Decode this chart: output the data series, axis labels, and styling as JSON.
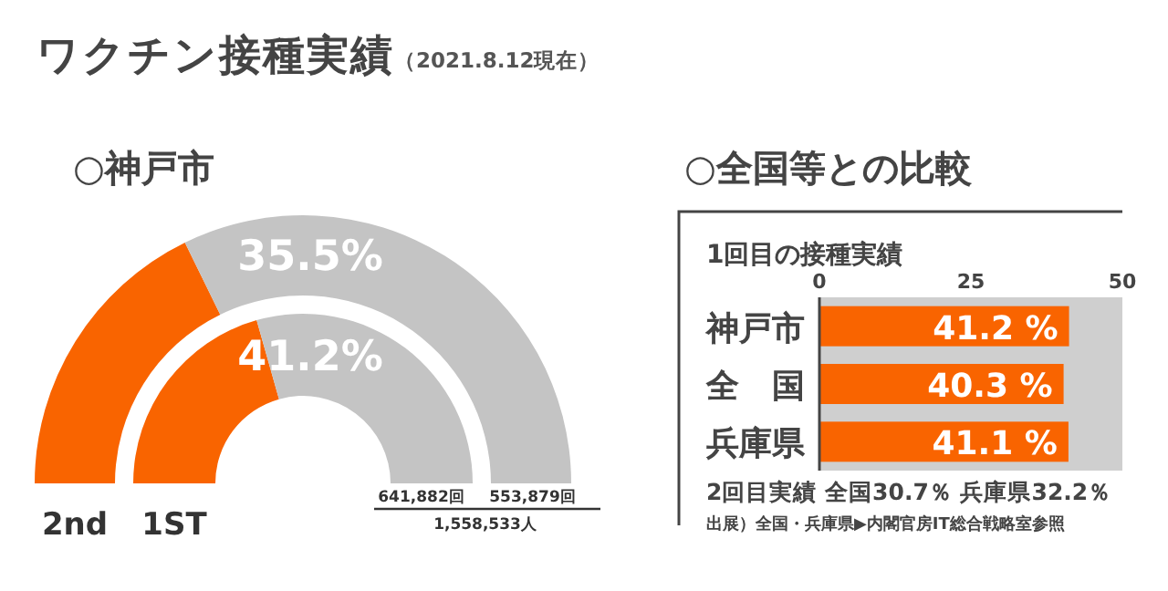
{
  "chart_data": [
    {
      "type": "other",
      "title": "ワクチン接種実績",
      "subtitle": "（2021.8.12現在）"
    },
    {
      "type": "donut",
      "title": "○神戸市",
      "categories": [
        null,
        null
      ],
      "series": [
        {
          "name": "2nd",
          "values": [
            35.5,
            64.5
          ],
          "colors": [
            "#f96400",
            "#c4c4c4"
          ]
        },
        {
          "name": "1ST",
          "values": [
            41.2,
            58.8
          ],
          "colors": [
            "#f96400",
            "#c4c4c4"
          ]
        }
      ],
      "annotations": [
        "35.5%",
        "41.2%",
        "641,882回",
        "553,879回",
        "1,558,533人"
      ]
    },
    {
      "type": "bar",
      "orientation": "horizontal",
      "title": "○全国等との比較",
      "subtitle": "1回目の接種実績",
      "categories": [
        "神戸市",
        "全　国",
        "兵庫県"
      ],
      "values": [
        41.2,
        40.3,
        41.1
      ],
      "color": "#f96400",
      "value_labels": [
        "41.2 %",
        "40.3 %",
        "41.1 %"
      ],
      "xlim": [
        0,
        50
      ],
      "xticks": [
        0,
        25,
        50
      ],
      "annotations": [
        "2回目実績 全国30.7％ 兵庫県32.2％",
        "出展）全国・兵庫県▶内閣官房IT総合戦略室参照"
      ]
    }
  ]
}
